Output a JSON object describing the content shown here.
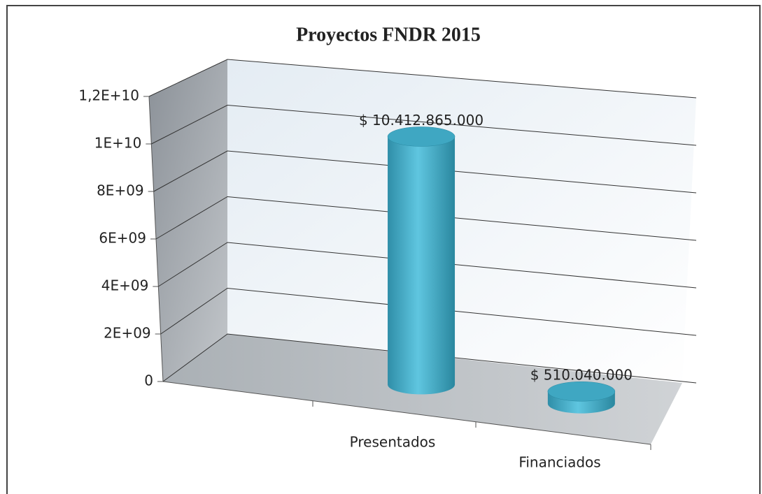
{
  "chart_data": {
    "type": "bar3d",
    "title": "Proyectos FNDR 2015",
    "categories": [
      "Presentados",
      "Financiados"
    ],
    "values": [
      10412865000,
      510040000
    ],
    "value_labels": [
      "$ 10.412.865.000",
      "$ 510.040.000"
    ],
    "color": "#4bacc6",
    "ylim": [
      0,
      12000000000
    ],
    "yticks": [
      0,
      {
        "value": 2000000000,
        "label": "2E+09"
      },
      {
        "value": 4000000000,
        "label": "4E+09"
      },
      {
        "value": 6000000000,
        "label": "6E+09"
      },
      {
        "value": 8000000000,
        "label": "8E+09"
      },
      {
        "value": 10000000000,
        "label": "1E+10"
      },
      {
        "value": 12000000000,
        "label": "1,2E+10"
      }
    ],
    "grid": true
  }
}
